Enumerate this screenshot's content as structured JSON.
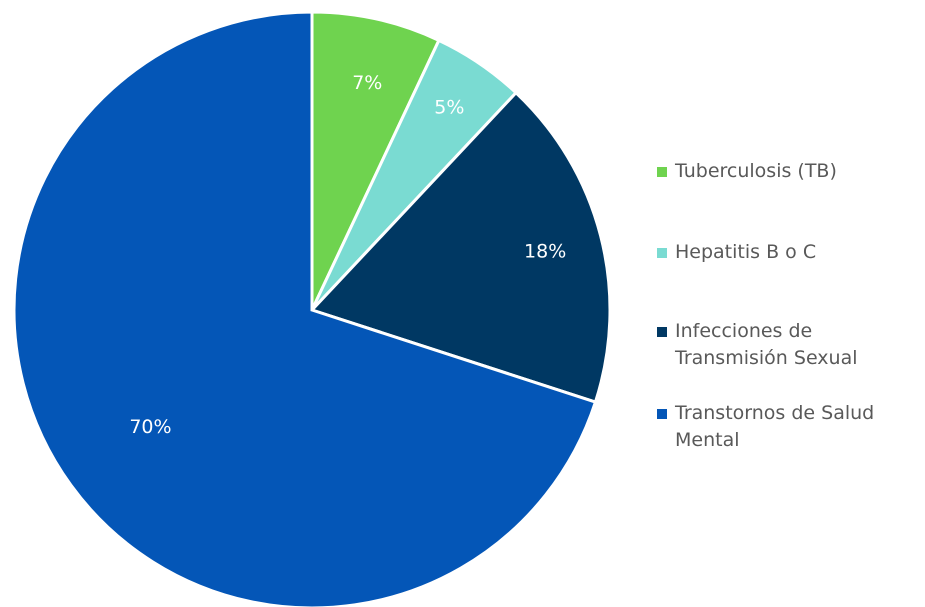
{
  "chart_data": {
    "type": "pie",
    "categories": [
      "Tuberculosis (TB)",
      "Hepatitis B o C",
      "Infecciones de Transmisión Sexual",
      "Transtornos de Salud Mental"
    ],
    "values": [
      7,
      5,
      18,
      70
    ],
    "data_labels": [
      "7%",
      "5%",
      "18%",
      "70%"
    ],
    "colors": [
      "#6FD34F",
      "#7ADBD2",
      "#003863",
      "#0456B7"
    ],
    "legend_labels": [
      "Tuberculosis (TB)",
      "Hepatitis B o C",
      "Infecciones de\nTransmisión Sexual",
      "Transtornos de Salud\nMental"
    ],
    "start_angle": "12 o'clock",
    "direction": "clockwise",
    "legend_position": "right"
  }
}
